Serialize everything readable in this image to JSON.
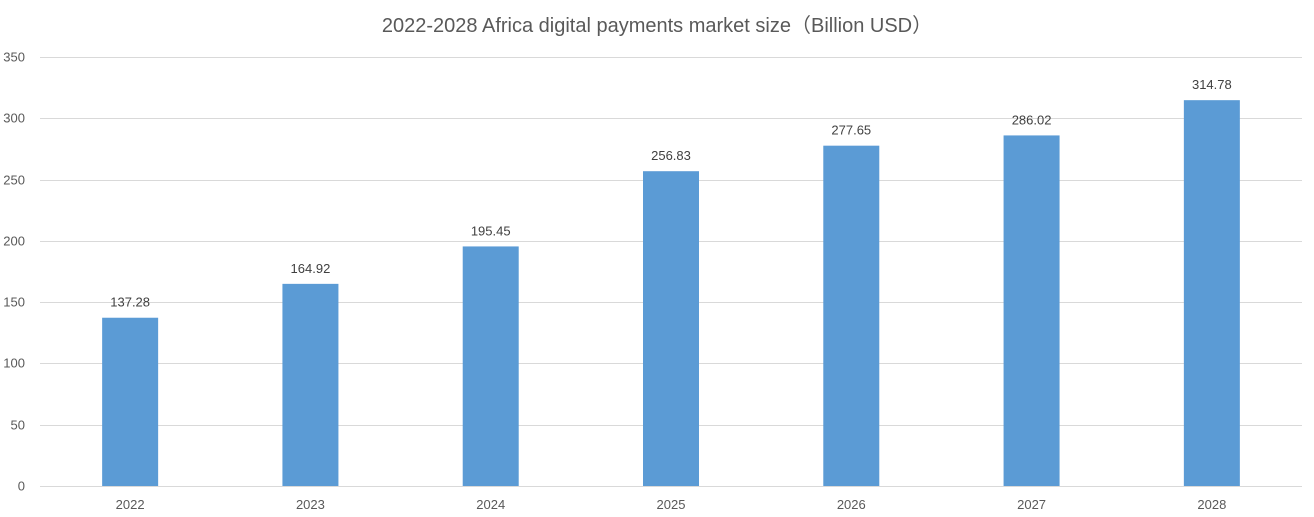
{
  "chart_data": {
    "type": "bar",
    "title": "2022-2028 Africa digital payments market size（Billion USD）",
    "categories": [
      "2022",
      "2023",
      "2024",
      "2025",
      "2026",
      "2027",
      "2028"
    ],
    "values": [
      137.28,
      164.92,
      195.45,
      256.83,
      277.65,
      286.02,
      314.78
    ],
    "data_labels": [
      "137.28",
      "164.92",
      "195.45",
      "256.83",
      "277.65",
      "286.02",
      "314.78"
    ],
    "xlabel": "",
    "ylabel": "",
    "ylim": [
      0,
      350
    ],
    "yticks": [
      0,
      50,
      100,
      150,
      200,
      250,
      300,
      350
    ],
    "grid": true,
    "legend": "none",
    "bar_color": "#5b9bd5"
  }
}
